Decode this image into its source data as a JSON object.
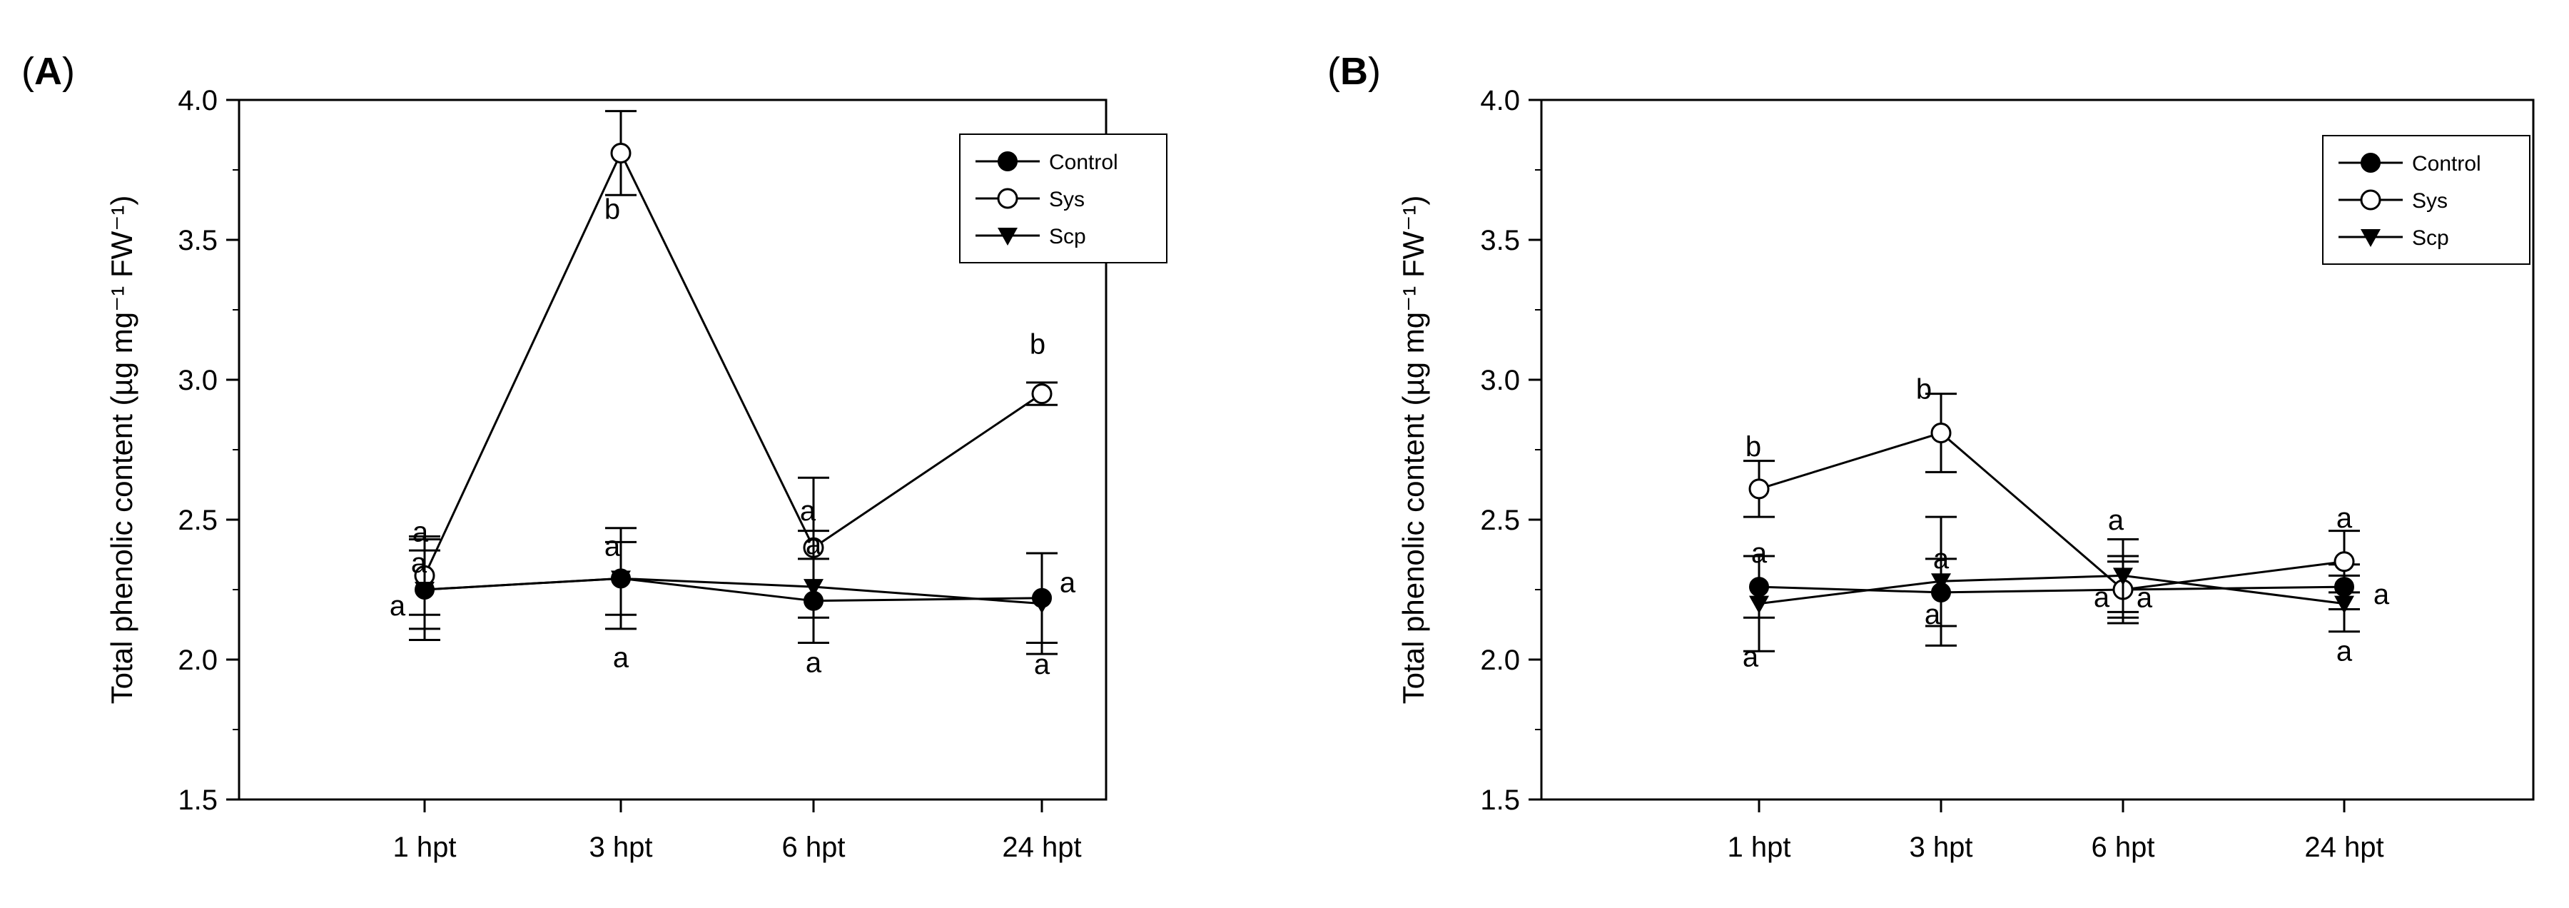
{
  "chart_data": [
    {
      "type": "line",
      "panel_label": "A",
      "ylabel": "Total phenolic content (µg mg⁻¹ FW⁻¹)",
      "xlabel": "",
      "categories": [
        "1 hpt",
        "3 hpt",
        "6 hpt",
        "24 hpt"
      ],
      "ylim": [
        1.5,
        4.0
      ],
      "yticks": [
        "1.5",
        "2.0",
        "2.5",
        "3.0",
        "3.5",
        "4.0"
      ],
      "grid": false,
      "legend_position": "top-right",
      "series": [
        {
          "name": "Control",
          "marker": "filled-circle",
          "values": [
            2.25,
            2.29,
            2.21,
            2.22
          ],
          "errors": [
            0.14,
            0.18,
            0.15,
            0.16
          ],
          "letters": [
            "a",
            "a",
            "a",
            "a"
          ]
        },
        {
          "name": "Sys",
          "marker": "open-circle",
          "values": [
            2.3,
            3.81,
            2.4,
            2.95
          ],
          "errors": [
            0.14,
            0.15,
            0.25,
            0.04
          ],
          "letters": [
            "a",
            "b",
            "a",
            "b"
          ]
        },
        {
          "name": "Scp",
          "marker": "filled-triangle-down",
          "values": [
            2.25,
            2.29,
            2.26,
            2.2
          ],
          "errors": [
            0.18,
            0.13,
            0.2,
            0.18
          ],
          "letters": [
            "a",
            "a",
            "a",
            "a"
          ]
        }
      ]
    },
    {
      "type": "line",
      "panel_label": "B",
      "ylabel": "Total phenolic content (µg mg⁻¹ FW⁻¹)",
      "xlabel": "",
      "categories": [
        "1 hpt",
        "3 hpt",
        "6 hpt",
        "24 hpt"
      ],
      "ylim": [
        1.5,
        4.0
      ],
      "yticks": [
        "1.5",
        "2.0",
        "2.5",
        "3.0",
        "3.5",
        "4.0"
      ],
      "grid": false,
      "legend_position": "top-right",
      "series": [
        {
          "name": "Control",
          "marker": "filled-circle",
          "values": [
            2.26,
            2.24,
            2.25,
            2.26
          ],
          "errors": [
            0.11,
            0.12,
            0.12,
            0.08
          ],
          "letters": [
            "a",
            "a",
            "a",
            "a"
          ]
        },
        {
          "name": "Sys",
          "marker": "open-circle",
          "values": [
            2.61,
            2.81,
            2.25,
            2.35
          ],
          "errors": [
            0.1,
            0.14,
            0.1,
            0.11
          ],
          "letters": [
            "b",
            "b",
            "a",
            "a"
          ]
        },
        {
          "name": "Scp",
          "marker": "filled-triangle-down",
          "values": [
            2.2,
            2.28,
            2.3,
            2.2
          ],
          "errors": [
            0.17,
            0.23,
            0.13,
            0.1
          ],
          "letters": [
            "a",
            "a",
            "a",
            "a"
          ]
        }
      ]
    }
  ]
}
